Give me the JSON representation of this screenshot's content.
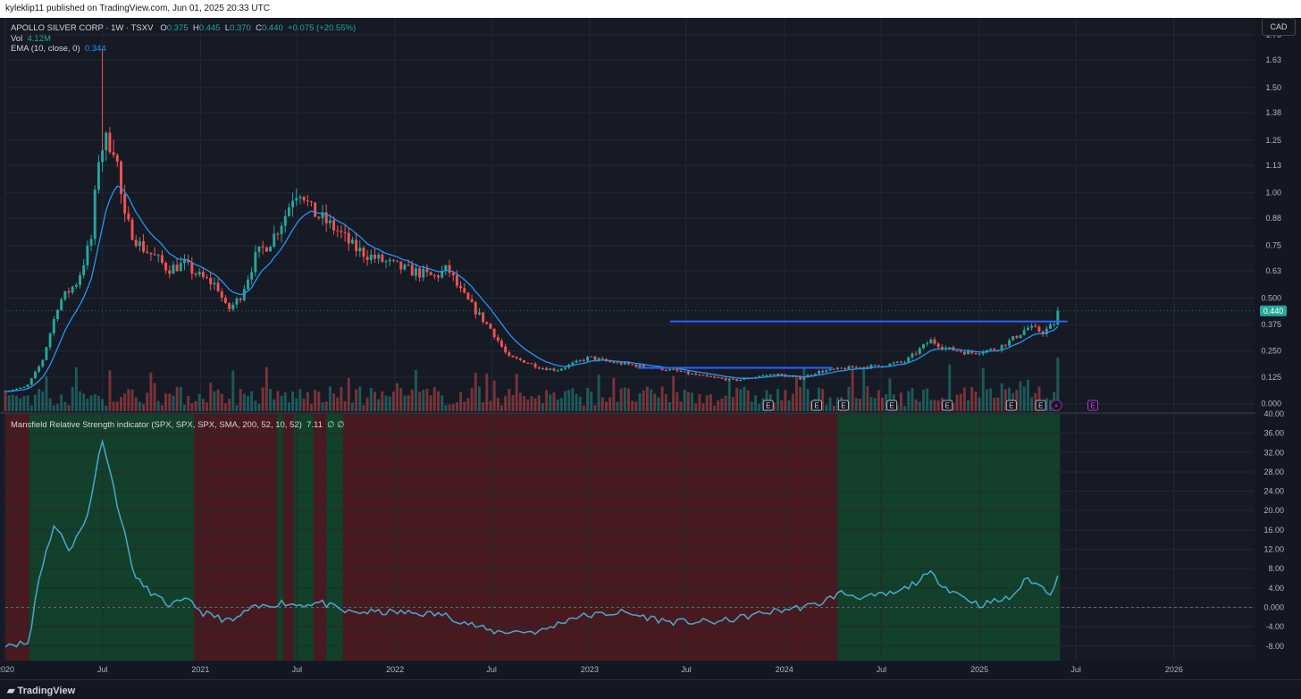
{
  "header": {
    "published": "kyleklip11 published on TradingView.com, Jun 01, 2025 20:33 UTC"
  },
  "legend": {
    "symbol": "APOLLO SILVER CORP · 1W · TSXV",
    "ohlc": {
      "o_label": "O",
      "o": "0.375",
      "h_label": "H",
      "h": "0.445",
      "l_label": "L",
      "l": "0.370",
      "c_label": "C",
      "c": "0.440",
      "change": "+0.075 (+20.55%)"
    },
    "vol_label": "Vol",
    "vol": "4.12M",
    "ema_label": "EMA (10, close, 0)",
    "ema": "0.344",
    "mrs_label": "Mansfield Relative Strength indicator (SPX, SPX, SPX, SMA, 200, 52, 10, 52)",
    "mrs": "7.11",
    "mrs_extra": "∅ ∅"
  },
  "currency": "CAD",
  "footer": {
    "brand": "TradingView"
  },
  "colors": {
    "up": "#26a69a",
    "down": "#ef5350",
    "ema": "#2196f3",
    "mrs": "#4aa8cc",
    "resistance": "#2962ff"
  },
  "chart_data": {
    "type": "candlestick",
    "price_axis_ticks": [
      "1.75",
      "1.63",
      "1.50",
      "1.38",
      "1.25",
      "1.13",
      "1.00",
      "0.88",
      "0.75",
      "0.63",
      "0.500",
      "0.375",
      "0.250",
      "0.125",
      "0.000"
    ],
    "price_label": "0.440",
    "indicator_axis_ticks": [
      "40.00",
      "36.00",
      "32.00",
      "28.00",
      "24.00",
      "20.00",
      "16.00",
      "12.00",
      "8.00",
      "4.00",
      "0.000",
      "-4.00",
      "-8.00"
    ],
    "time_ticks": [
      "2020",
      "Jul",
      "2021",
      "Jul",
      "2022",
      "Jul",
      "2023",
      "Jul",
      "2024",
      "Jul",
      "2025",
      "Jul",
      "2026"
    ],
    "price_path": [
      [
        "2020-01-01",
        0.06
      ],
      [
        "2020-02-10",
        0.08
      ],
      [
        "2020-03-10",
        0.2
      ],
      [
        "2020-04-10",
        0.48
      ],
      [
        "2020-05-15",
        0.58
      ],
      [
        "2020-06-10",
        0.78
      ],
      [
        "2020-06-25",
        1.2
      ],
      [
        "2020-07-10",
        1.25
      ],
      [
        "2020-07-25",
        1.22
      ],
      [
        "2020-08-10",
        0.88
      ],
      [
        "2020-09-10",
        0.75
      ],
      [
        "2020-10-05",
        0.7
      ],
      [
        "2020-11-01",
        0.64
      ],
      [
        "2020-12-01",
        0.66
      ],
      [
        "2021-01-01",
        0.6
      ],
      [
        "2021-02-01",
        0.56
      ],
      [
        "2021-02-20",
        0.44
      ],
      [
        "2021-03-15",
        0.5
      ],
      [
        "2021-04-15",
        0.7
      ],
      [
        "2021-05-15",
        0.78
      ],
      [
        "2021-06-10",
        0.9
      ],
      [
        "2021-06-25",
        1.0
      ],
      [
        "2021-07-10",
        1.02
      ],
      [
        "2021-07-25",
        0.92
      ],
      [
        "2021-08-15",
        0.88
      ],
      [
        "2021-09-15",
        0.82
      ],
      [
        "2021-10-15",
        0.74
      ],
      [
        "2021-11-15",
        0.7
      ],
      [
        "2021-12-15",
        0.67
      ],
      [
        "2022-01-15",
        0.64
      ],
      [
        "2022-02-15",
        0.62
      ],
      [
        "2022-03-15",
        0.6
      ],
      [
        "2022-04-10",
        0.64
      ],
      [
        "2022-05-01",
        0.54
      ],
      [
        "2022-06-01",
        0.44
      ],
      [
        "2022-07-01",
        0.35
      ],
      [
        "2022-08-01",
        0.22
      ],
      [
        "2022-09-01",
        0.2
      ],
      [
        "2022-10-01",
        0.17
      ],
      [
        "2022-11-01",
        0.16
      ],
      [
        "2022-12-01",
        0.19
      ],
      [
        "2023-01-01",
        0.22
      ],
      [
        "2023-02-01",
        0.2
      ],
      [
        "2023-04-01",
        0.18
      ],
      [
        "2023-06-01",
        0.16
      ],
      [
        "2023-08-01",
        0.13
      ],
      [
        "2023-10-01",
        0.11
      ],
      [
        "2023-11-15",
        0.13
      ],
      [
        "2023-12-15",
        0.14
      ],
      [
        "2024-02-01",
        0.12
      ],
      [
        "2024-03-01",
        0.15
      ],
      [
        "2024-05-01",
        0.17
      ],
      [
        "2024-07-01",
        0.18
      ],
      [
        "2024-08-15",
        0.2
      ],
      [
        "2024-10-01",
        0.3
      ],
      [
        "2024-11-01",
        0.26
      ],
      [
        "2024-12-15",
        0.24
      ],
      [
        "2025-02-01",
        0.26
      ],
      [
        "2025-03-01",
        0.3
      ],
      [
        "2025-04-01",
        0.36
      ],
      [
        "2025-05-01",
        0.34
      ],
      [
        "2025-05-20",
        0.375
      ],
      [
        "2025-05-30",
        0.44
      ]
    ],
    "spike_high": {
      "date": "2020-07-01",
      "price": 1.68
    },
    "ema_value": 0.344,
    "resistance_lines": [
      {
        "from": "2023-06-01",
        "to": "2025-06-15",
        "price": 0.39
      },
      {
        "from": "2023-04-01",
        "to": "2024-04-01",
        "price": 0.17
      }
    ],
    "earnings_markers": [
      "2023-12-01",
      "2024-03-01",
      "2024-04-20",
      "2024-07-20",
      "2024-11-01",
      "2025-03-01",
      "2025-04-25"
    ],
    "earnings_marker_label": "E",
    "future_earnings_marker": "2025-08-01",
    "mrs_path": [
      [
        "2020-01-01",
        -7.5
      ],
      [
        "2020-02-15",
        -7.5
      ],
      [
        "2020-03-01",
        5
      ],
      [
        "2020-04-01",
        17
      ],
      [
        "2020-05-01",
        12
      ],
      [
        "2020-06-01",
        18
      ],
      [
        "2020-07-01",
        35
      ],
      [
        "2020-08-01",
        20
      ],
      [
        "2020-09-01",
        6
      ],
      [
        "2020-10-01",
        3
      ],
      [
        "2020-11-01",
        0.5
      ],
      [
        "2020-12-15",
        1.5
      ],
      [
        "2021-01-01",
        -1
      ],
      [
        "2021-03-01",
        -3
      ],
      [
        "2021-04-01",
        -0.5
      ],
      [
        "2021-06-01",
        1
      ],
      [
        "2021-07-01",
        0.5
      ],
      [
        "2021-08-15",
        1
      ],
      [
        "2021-10-01",
        -1
      ],
      [
        "2022-01-01",
        -1
      ],
      [
        "2022-04-01",
        -1.5
      ],
      [
        "2022-07-01",
        -5
      ],
      [
        "2022-10-01",
        -5
      ],
      [
        "2022-12-01",
        -2
      ],
      [
        "2023-03-01",
        -1
      ],
      [
        "2023-06-01",
        -3
      ],
      [
        "2023-09-01",
        -3
      ],
      [
        "2023-12-01",
        -1
      ],
      [
        "2024-03-01",
        0.5
      ],
      [
        "2024-04-15",
        3
      ],
      [
        "2024-06-01",
        2
      ],
      [
        "2024-08-01",
        3
      ],
      [
        "2024-10-01",
        7
      ],
      [
        "2024-11-01",
        4
      ],
      [
        "2025-01-01",
        0.5
      ],
      [
        "2025-03-01",
        2
      ],
      [
        "2025-04-01",
        6
      ],
      [
        "2025-05-15",
        3
      ],
      [
        "2025-05-30",
        7.11
      ]
    ],
    "mrs_zones": [
      {
        "from": "2020-01-01",
        "to": "2020-02-15",
        "sign": "negative"
      },
      {
        "from": "2020-02-15",
        "to": "2020-12-20",
        "sign": "positive"
      },
      {
        "from": "2020-12-20",
        "to": "2021-05-25",
        "sign": "negative"
      },
      {
        "from": "2021-05-25",
        "to": "2021-06-05",
        "sign": "positive"
      },
      {
        "from": "2021-06-05",
        "to": "2021-06-25",
        "sign": "negative"
      },
      {
        "from": "2021-06-25",
        "to": "2021-08-01",
        "sign": "positive"
      },
      {
        "from": "2021-08-01",
        "to": "2021-08-25",
        "sign": "negative"
      },
      {
        "from": "2021-08-25",
        "to": "2021-09-25",
        "sign": "positive"
      },
      {
        "from": "2021-09-25",
        "to": "2024-04-10",
        "sign": "negative"
      },
      {
        "from": "2024-04-10",
        "to": "2025-06-01",
        "sign": "positive"
      }
    ]
  }
}
